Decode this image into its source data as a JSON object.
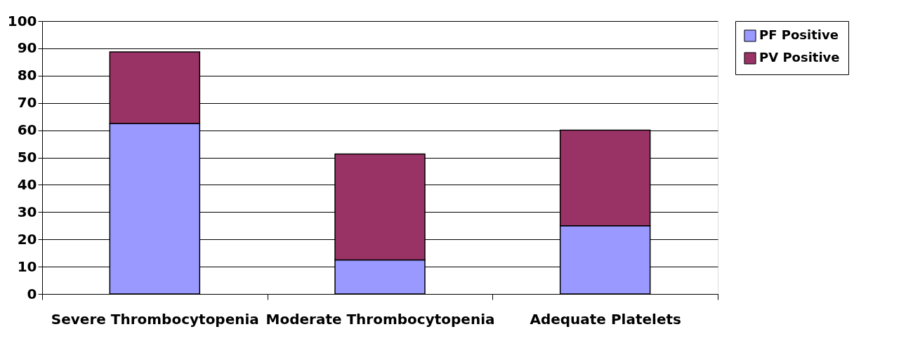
{
  "chart_data": {
    "type": "bar",
    "stacked": true,
    "categories": [
      "Severe Thrombocytopenia",
      "Moderate Thrombocytopenia",
      "Adequate Platelets"
    ],
    "series": [
      {
        "name": "PF Positive",
        "color": "#9999ff",
        "values": [
          62.5,
          12.5,
          25
        ]
      },
      {
        "name": "PV Positive",
        "color": "#993366",
        "values": [
          26.2,
          38.8,
          35
        ]
      }
    ],
    "ylim": [
      0,
      100
    ],
    "yticks": [
      0,
      10,
      20,
      30,
      40,
      50,
      60,
      70,
      80,
      90,
      100
    ],
    "grid": "y",
    "legend": "right"
  }
}
